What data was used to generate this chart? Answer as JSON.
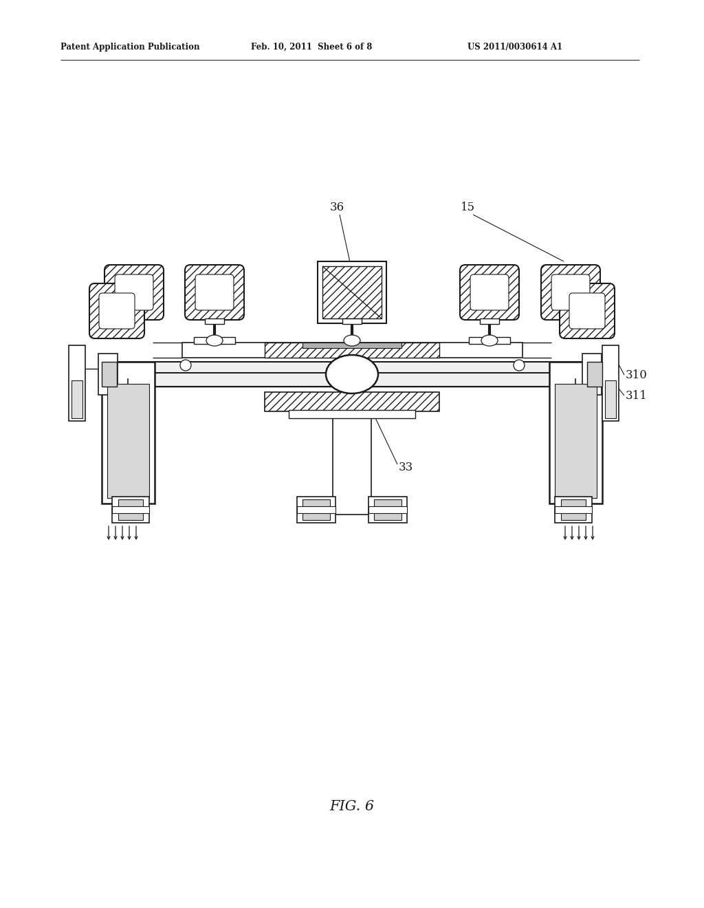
{
  "bg_color": "#ffffff",
  "line_color": "#1a1a1a",
  "header_left": "Patent Application Publication",
  "header_mid": "Feb. 10, 2011  Sheet 6 of 8",
  "header_right": "US 2011/0030614 A1",
  "fig_label": "FIG. 6"
}
